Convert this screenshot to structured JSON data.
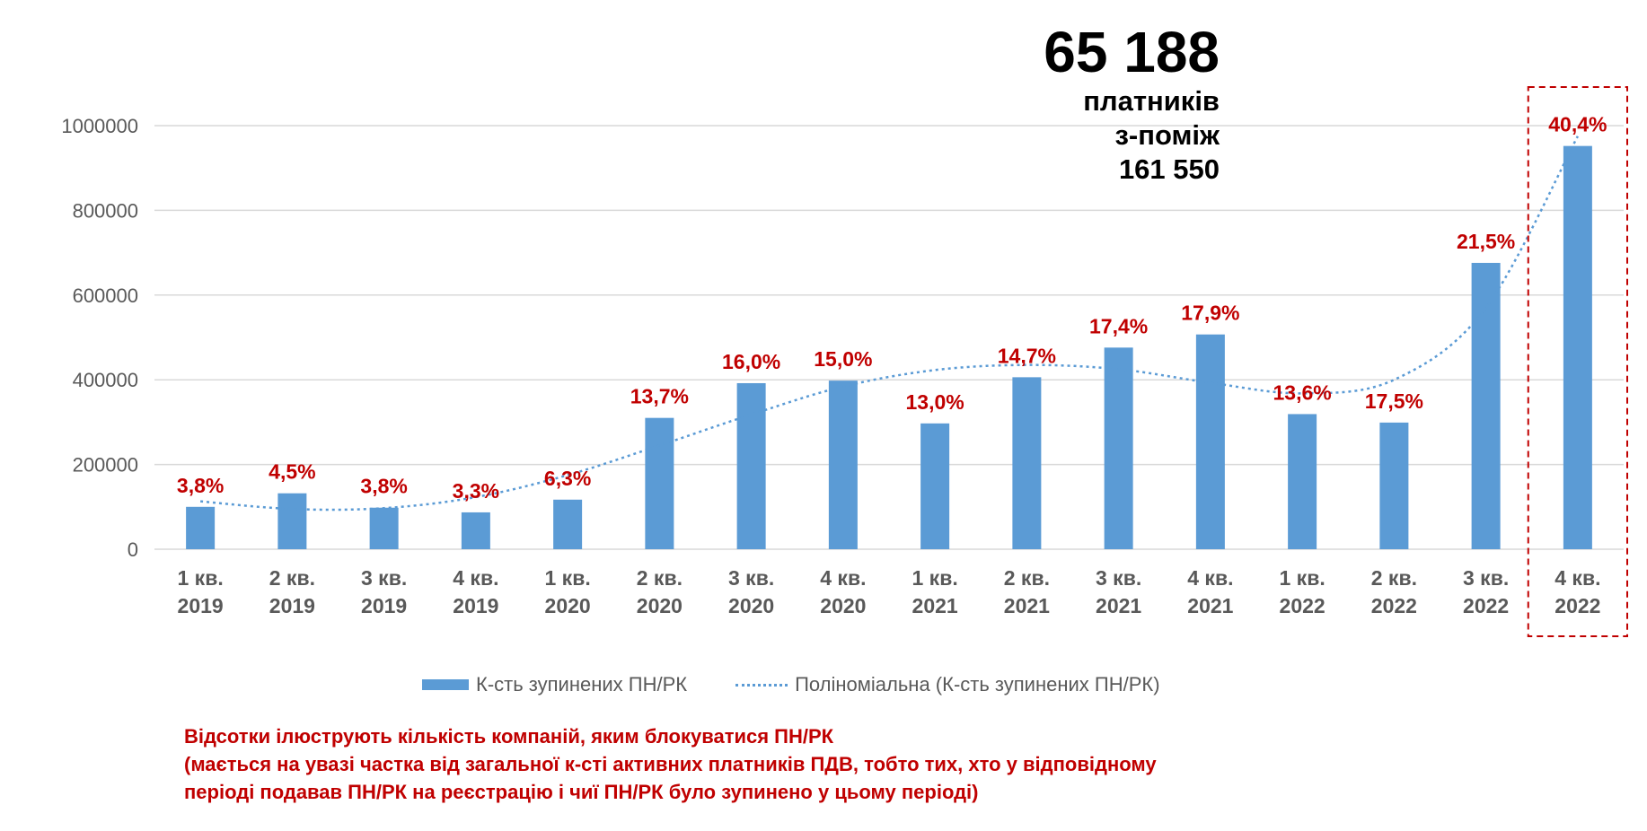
{
  "chart_data": {
    "type": "bar",
    "categories": [
      [
        "1 кв.",
        "2019"
      ],
      [
        "2 кв.",
        "2019"
      ],
      [
        "3 кв.",
        "2019"
      ],
      [
        "4 кв.",
        "2019"
      ],
      [
        "1 кв.",
        "2020"
      ],
      [
        "2 кв.",
        "2020"
      ],
      [
        "3 кв.",
        "2020"
      ],
      [
        "4 кв.",
        "2020"
      ],
      [
        "1 кв.",
        "2021"
      ],
      [
        "2 кв.",
        "2021"
      ],
      [
        "3 кв.",
        "2021"
      ],
      [
        "4 кв.",
        "2021"
      ],
      [
        "1 кв.",
        "2022"
      ],
      [
        "2 кв.",
        "2022"
      ],
      [
        "3 кв.",
        "2022"
      ],
      [
        "4 кв.",
        "2022"
      ]
    ],
    "series": [
      {
        "name": "К-сть зупинених ПН/РК",
        "values": [
          100000,
          132000,
          98000,
          87000,
          117000,
          310000,
          392000,
          398000,
          297000,
          406000,
          476000,
          507000,
          319000,
          299000,
          676000,
          952000
        ],
        "color": "#5B9BD5"
      }
    ],
    "trendline": {
      "name": "Поліноміальна (К-сть зупинених ПН/РК)",
      "style": "dotted",
      "color": "#5B9BD5",
      "values": [
        113000,
        95000,
        97000,
        123000,
        175000,
        245000,
        318000,
        384000,
        423000,
        435000,
        425000,
        393000,
        368000,
        400000,
        570000,
        975000
      ]
    },
    "data_labels": [
      "3,8%",
      "4,5%",
      "3,8%",
      "3,3%",
      "6,3%",
      "13,7%",
      "16,0%",
      "15,0%",
      "13,0%",
      "14,7%",
      "17,4%",
      "17,9%",
      "13,6%",
      "17,5%",
      "21,5%",
      "40,4%"
    ],
    "label_color": "#C00000",
    "ylim": [
      0,
      1000000
    ],
    "yticks": [
      "0",
      "200000",
      "400000",
      "600000",
      "800000",
      "1000000"
    ],
    "ytick_values": [
      0,
      200000,
      400000,
      600000,
      800000,
      1000000
    ],
    "grid": true,
    "highlight_index": 15,
    "highlight_color": "#C00000",
    "legend_position": "bottom"
  },
  "callout": {
    "big": "65 188",
    "line1": "платників",
    "line2": "з-поміж",
    "line3": "161 550"
  },
  "legend": {
    "bar_label": "К-сть зупинених ПН/РК",
    "line_label": "Поліноміальна (К-сть зупинених ПН/РК)"
  },
  "note": {
    "line1": "Відсотки ілюструють  кількість компаній, яким блокуватися ПН/РК",
    "line2": "(мається на увазі частка від загальної к-сті активних платників ПДВ, тобто тих, хто у відповідному",
    "line3": "періоді подавав ПН/РК на реєстрацію і чиї ПН/РК було зупинено у цьому періоді)"
  }
}
